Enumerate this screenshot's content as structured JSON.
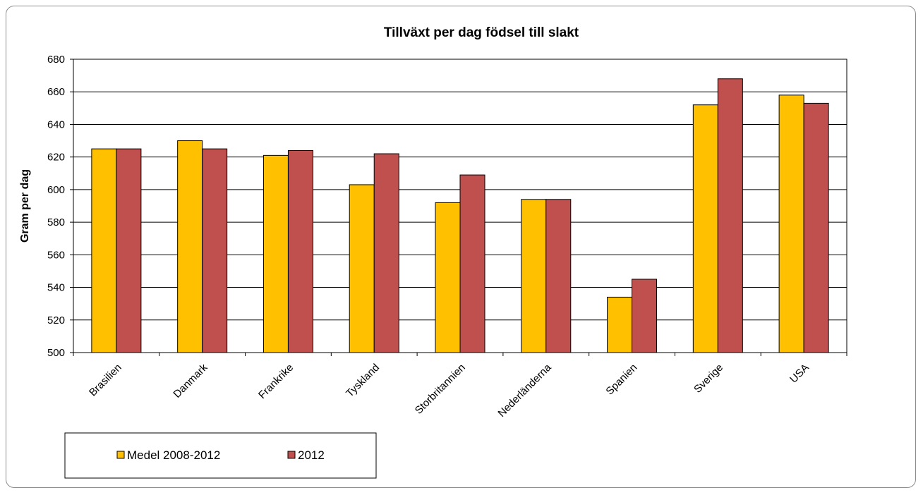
{
  "chart_data": {
    "type": "bar",
    "title": "Tillväxt per dag födsel till slakt",
    "xlabel": "",
    "ylabel": "Gram per dag",
    "ylim": [
      500,
      680
    ],
    "yticks": [
      500,
      520,
      540,
      560,
      580,
      600,
      620,
      640,
      660,
      680
    ],
    "grid": true,
    "legend_position": "bottom-left",
    "categories": [
      "Brasilien",
      "Danmark",
      "Frankrike",
      "Tyskland",
      "Storbritannien",
      "Nederländerna",
      "Spanien",
      "Sverige",
      "USA"
    ],
    "series": [
      {
        "name": "Medel 2008-2012",
        "color": "#FFC000",
        "values": [
          625,
          630,
          621,
          603,
          592,
          594,
          534,
          652,
          658
        ]
      },
      {
        "name": "2012",
        "color": "#C0504D",
        "values": [
          625,
          625,
          624,
          622,
          609,
          594,
          545,
          668,
          653
        ]
      }
    ]
  }
}
